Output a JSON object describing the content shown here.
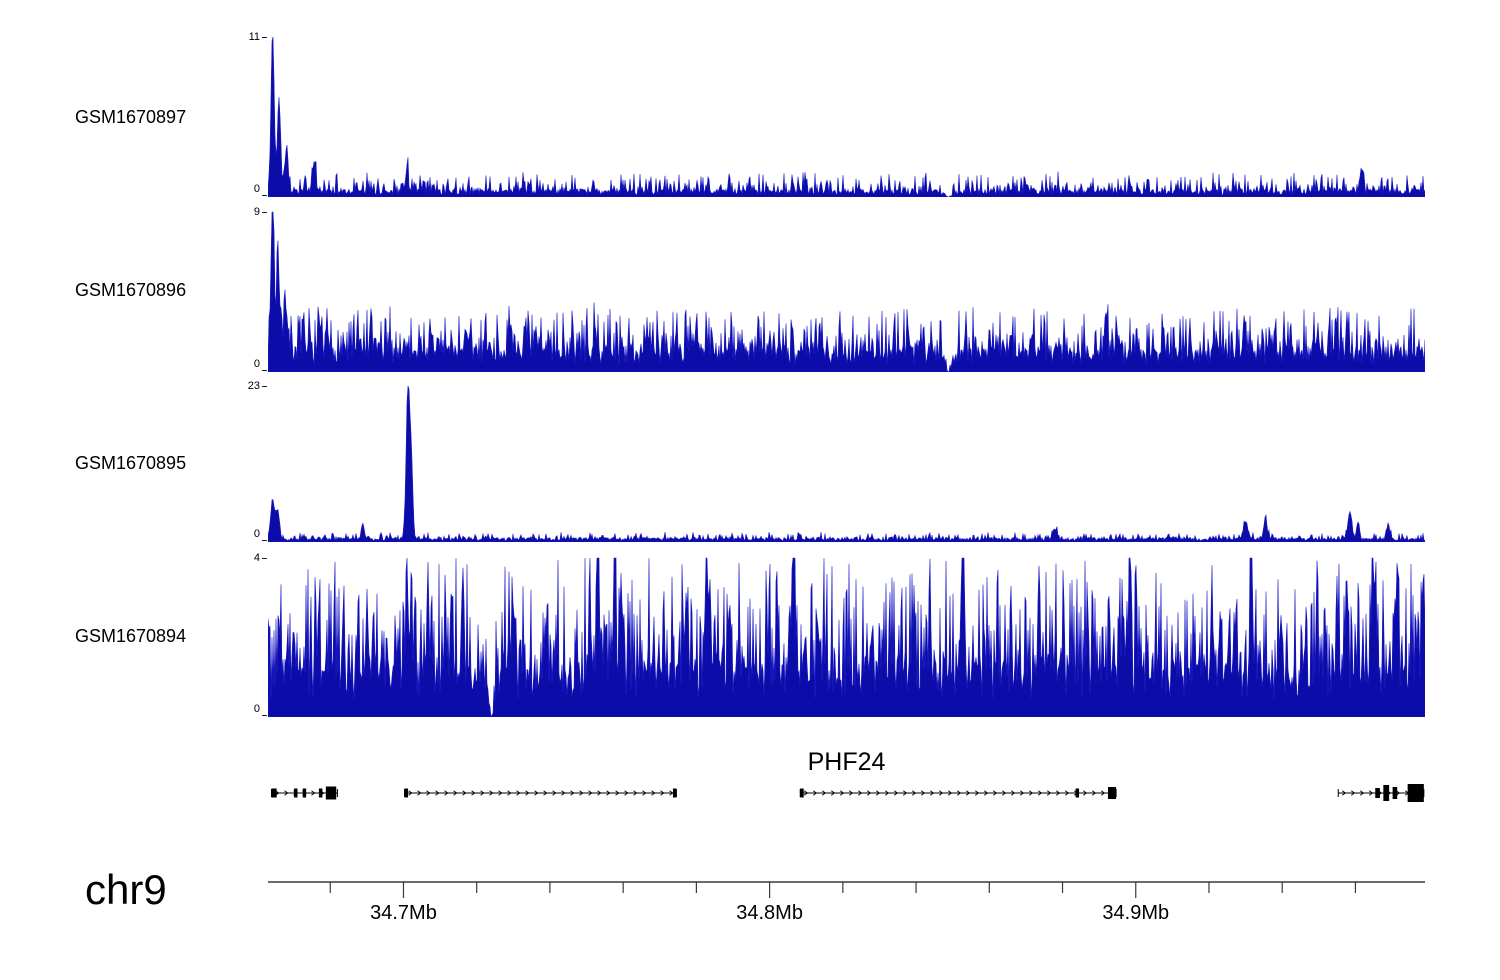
{
  "window": {
    "background": "#ffffff"
  },
  "chart_data": {
    "type": "area",
    "title": "",
    "description_type": "genome-browser coverage tracks",
    "region": {
      "chromosome": "chr9",
      "start_mb": 34.663,
      "end_mb": 34.979
    },
    "axis": {
      "minor_tick_interval_mb": 0.02,
      "labeled_ticks": [
        {
          "value_mb": 34.7,
          "label": "34.7Mb"
        },
        {
          "value_mb": 34.8,
          "label": "34.8Mb"
        },
        {
          "value_mb": 34.9,
          "label": "34.9Mb"
        }
      ]
    },
    "tracks": [
      {
        "name": "GSM1670897",
        "ylim": [
          0,
          11
        ],
        "y_axis_labels": {
          "max": "11",
          "min": "0"
        },
        "color": "#0c0ca8",
        "stroke": "#1c1cc8",
        "signal": {
          "seed": 42,
          "base": 0.35,
          "amp": 1.3,
          "exp": 4
        },
        "peaks": [
          {
            "pos": 0.004,
            "h": 11,
            "w": 1.6
          },
          {
            "pos": 0.0095,
            "h": 6.5,
            "w": 1.6
          },
          {
            "pos": 0.016,
            "h": 3.2,
            "w": 1.6
          },
          {
            "pos": 0.04,
            "h": 2.2,
            "w": 1.5
          },
          {
            "pos": 0.12,
            "h": 1.6,
            "w": 1.5
          },
          {
            "pos": 0.945,
            "h": 1.8,
            "w": 1.5
          }
        ],
        "gaps": [
          {
            "pos": 0.588,
            "w": 4
          }
        ]
      },
      {
        "name": "GSM1670896",
        "ylim": [
          0,
          9
        ],
        "y_axis_labels": {
          "max": "9",
          "min": "0"
        },
        "color": "#0c0ca8",
        "stroke": "#1c1cc8",
        "signal": {
          "seed": 7,
          "base": 0.95,
          "amp": 2.6,
          "exp": 2.6
        },
        "peaks": [
          {
            "pos": 0.004,
            "h": 9,
            "w": 1.6
          },
          {
            "pos": 0.009,
            "h": 5,
            "w": 1.6
          },
          {
            "pos": 0.016,
            "h": 2.5,
            "w": 1.5
          }
        ],
        "gaps": [
          {
            "pos": 0.588,
            "w": 3
          }
        ]
      },
      {
        "name": "GSM1670895",
        "ylim": [
          0,
          23
        ],
        "y_axis_labels": {
          "max": "23",
          "min": "0"
        },
        "color": "#0c0ca8",
        "stroke": "#1c1cc8",
        "signal": {
          "seed": 13,
          "base": 0.45,
          "amp": 0.9,
          "exp": 5
        },
        "peaks": [
          {
            "pos": 0.004,
            "h": 5.5,
            "w": 2.2
          },
          {
            "pos": 0.0085,
            "h": 4,
            "w": 1.8
          },
          {
            "pos": 0.082,
            "h": 2.2,
            "w": 1.5
          },
          {
            "pos": 0.121,
            "h": 23,
            "w": 1.8
          },
          {
            "pos": 0.124,
            "h": 10,
            "w": 1.5
          },
          {
            "pos": 0.68,
            "h": 1.6,
            "w": 2
          },
          {
            "pos": 0.845,
            "h": 2.6,
            "w": 2
          },
          {
            "pos": 0.862,
            "h": 3.2,
            "w": 1.6
          },
          {
            "pos": 0.935,
            "h": 4,
            "w": 1.8
          },
          {
            "pos": 0.942,
            "h": 2.5,
            "w": 1.5
          },
          {
            "pos": 0.968,
            "h": 2.2,
            "w": 1.5
          }
        ],
        "gaps": []
      },
      {
        "name": "GSM1670894",
        "ylim": [
          0,
          4
        ],
        "y_axis_labels": {
          "max": "4",
          "min": "0"
        },
        "color": "#0c0ca8",
        "stroke": "#1c1cc8",
        "signal": {
          "seed": 99,
          "base": 0.95,
          "amp": 2.9,
          "exp": 2.2
        },
        "peaks": [
          {
            "pos": 0.12,
            "h": 3.0,
            "w": 1.2
          },
          {
            "pos": 0.285,
            "h": 3.3,
            "w": 1.3
          },
          {
            "pos": 0.3,
            "h": 3.2,
            "w": 1.2
          },
          {
            "pos": 0.379,
            "h": 3.9,
            "w": 1.4
          },
          {
            "pos": 0.455,
            "h": 3.4,
            "w": 1.2
          },
          {
            "pos": 0.6,
            "h": 3.2,
            "w": 1.2
          },
          {
            "pos": 0.745,
            "h": 3.6,
            "w": 1.2
          },
          {
            "pos": 0.85,
            "h": 3.4,
            "w": 1.2
          },
          {
            "pos": 0.955,
            "h": 3.2,
            "w": 1.2
          }
        ],
        "gaps": [
          {
            "pos": 0.193,
            "w": 3
          }
        ]
      }
    ],
    "gene_track": {
      "gene_label": "PHF24",
      "segments": [
        {
          "start": 0.003,
          "end": 0.06,
          "exons": [
            {
              "s": 0.003,
              "e": 0.0075,
              "h": 9
            },
            {
              "s": 0.0225,
              "e": 0.0255,
              "h": 9
            },
            {
              "s": 0.03,
              "e": 0.033,
              "h": 9
            },
            {
              "s": 0.044,
              "e": 0.047,
              "h": 9
            },
            {
              "s": 0.05,
              "e": 0.059,
              "h": 13
            }
          ]
        },
        {
          "start": 0.118,
          "end": 0.353,
          "exons": [
            {
              "s": 0.118,
              "e": 0.121,
              "h": 9
            },
            {
              "s": 0.35,
              "e": 0.353,
              "h": 9
            }
          ]
        },
        {
          "start": 0.46,
          "end": 0.733,
          "exons": [
            {
              "s": 0.46,
              "e": 0.463,
              "h": 9
            },
            {
              "s": 0.698,
              "e": 0.701,
              "h": 9
            },
            {
              "s": 0.726,
              "e": 0.733,
              "h": 12
            }
          ]
        },
        {
          "start": 0.925,
          "end": 0.999,
          "exons": [
            {
              "s": 0.957,
              "e": 0.961,
              "h": 10
            },
            {
              "s": 0.964,
              "e": 0.969,
              "h": 16
            },
            {
              "s": 0.972,
              "e": 0.976,
              "h": 12
            },
            {
              "s": 0.985,
              "e": 0.999,
              "h": 18
            }
          ]
        }
      ]
    }
  }
}
